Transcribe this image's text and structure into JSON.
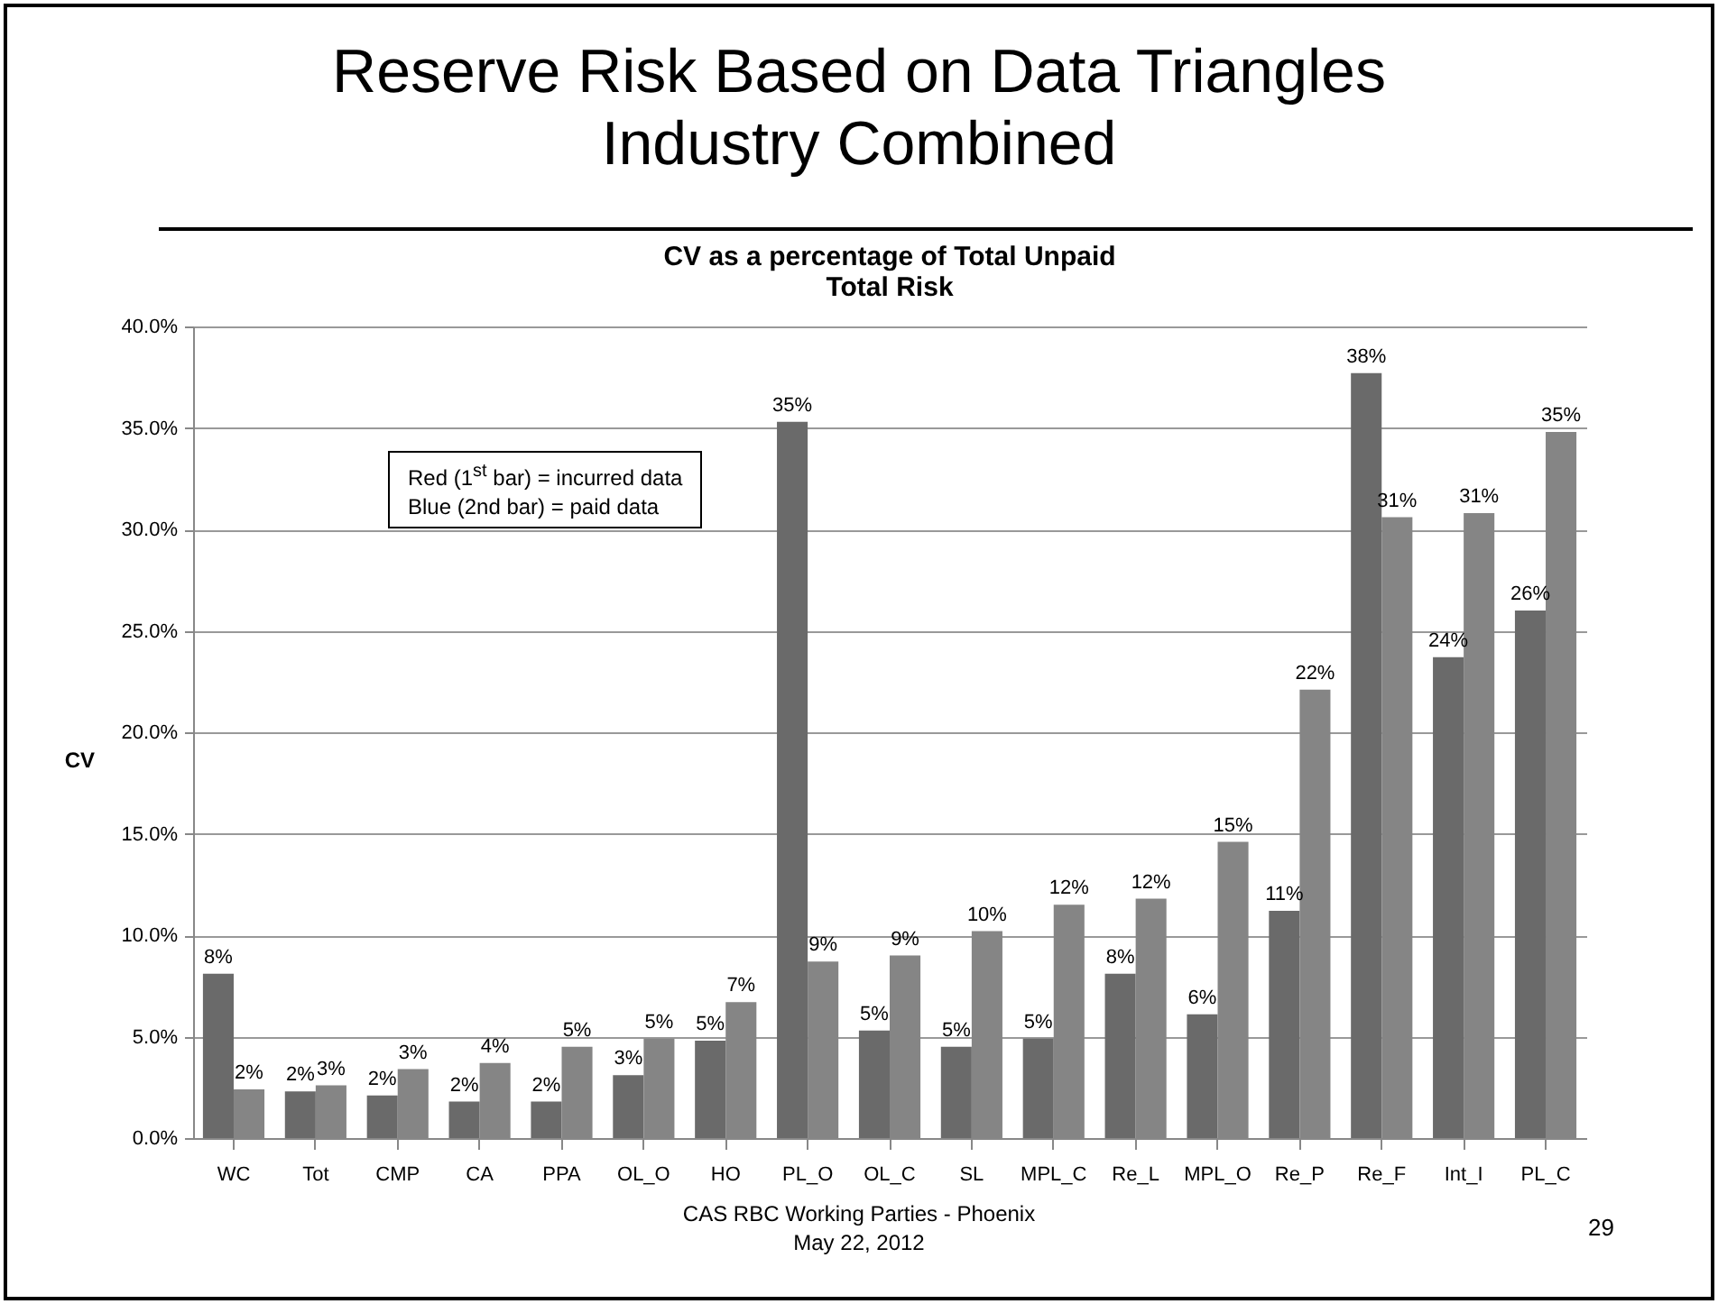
{
  "chart_data": {
    "type": "bar",
    "title": "Reserve Risk Based on Data Triangles\nIndustry Combined",
    "subtitle": "CV as a percentage of Total Unpaid\nTotal Risk",
    "ylabel": "CV",
    "categories": [
      "WC",
      "Tot",
      "CMP",
      "CA",
      "PPA",
      "OL_O",
      "HO",
      "PL_O",
      "OL_C",
      "SL",
      "MPL_C",
      "Re_L",
      "MPL_O",
      "Re_P",
      "Re_F",
      "Int_I",
      "PL_C"
    ],
    "series": [
      {
        "color": "#6a6a6a",
        "values": [
          8.1,
          2.3,
          2.1,
          1.8,
          1.8,
          3.1,
          4.8,
          35.3,
          5.3,
          4.5,
          4.9,
          8.1,
          6.1,
          11.2,
          37.7,
          23.7,
          26.0
        ],
        "value_labels": [
          "8%",
          "2%",
          "2%",
          "2%",
          "2%",
          "3%",
          "5%",
          "35%",
          "5%",
          "5%",
          "5%",
          "8%",
          "6%",
          "11%",
          "38%",
          "24%",
          "26%"
        ]
      },
      {
        "color": "#858585",
        "values": [
          2.4,
          2.6,
          3.4,
          3.7,
          4.5,
          4.9,
          6.7,
          8.7,
          9.0,
          10.2,
          11.5,
          11.8,
          14.6,
          22.1,
          30.6,
          30.8,
          34.8
        ],
        "value_labels": [
          "2%",
          "3%",
          "3%",
          "4%",
          "5%",
          "5%",
          "7%",
          "9%",
          "9%",
          "10%",
          "12%",
          "12%",
          "15%",
          "22%",
          "31%",
          "31%",
          "35%"
        ]
      }
    ],
    "ylim": [
      0,
      40
    ],
    "yticks": [
      {
        "value": 0,
        "label": "0.0%"
      },
      {
        "value": 5,
        "label": "5.0%"
      },
      {
        "value": 10,
        "label": "10.0%"
      },
      {
        "value": 15,
        "label": "15.0%"
      },
      {
        "value": 20,
        "label": "20.0%"
      },
      {
        "value": 25,
        "label": "25.0%"
      },
      {
        "value": 30,
        "label": "30.0%"
      },
      {
        "value": 35,
        "label": "35.0%"
      },
      {
        "value": 40,
        "label": "40.0%"
      }
    ],
    "grid": "y",
    "annotations": [
      "Red  (1$^{st}$  bar) = incurred  data\nBlue (2nd bar)  = paid data",
      "CAS RBC Working Parties - Phoenix\nMay 22, 2012",
      "29"
    ]
  }
}
